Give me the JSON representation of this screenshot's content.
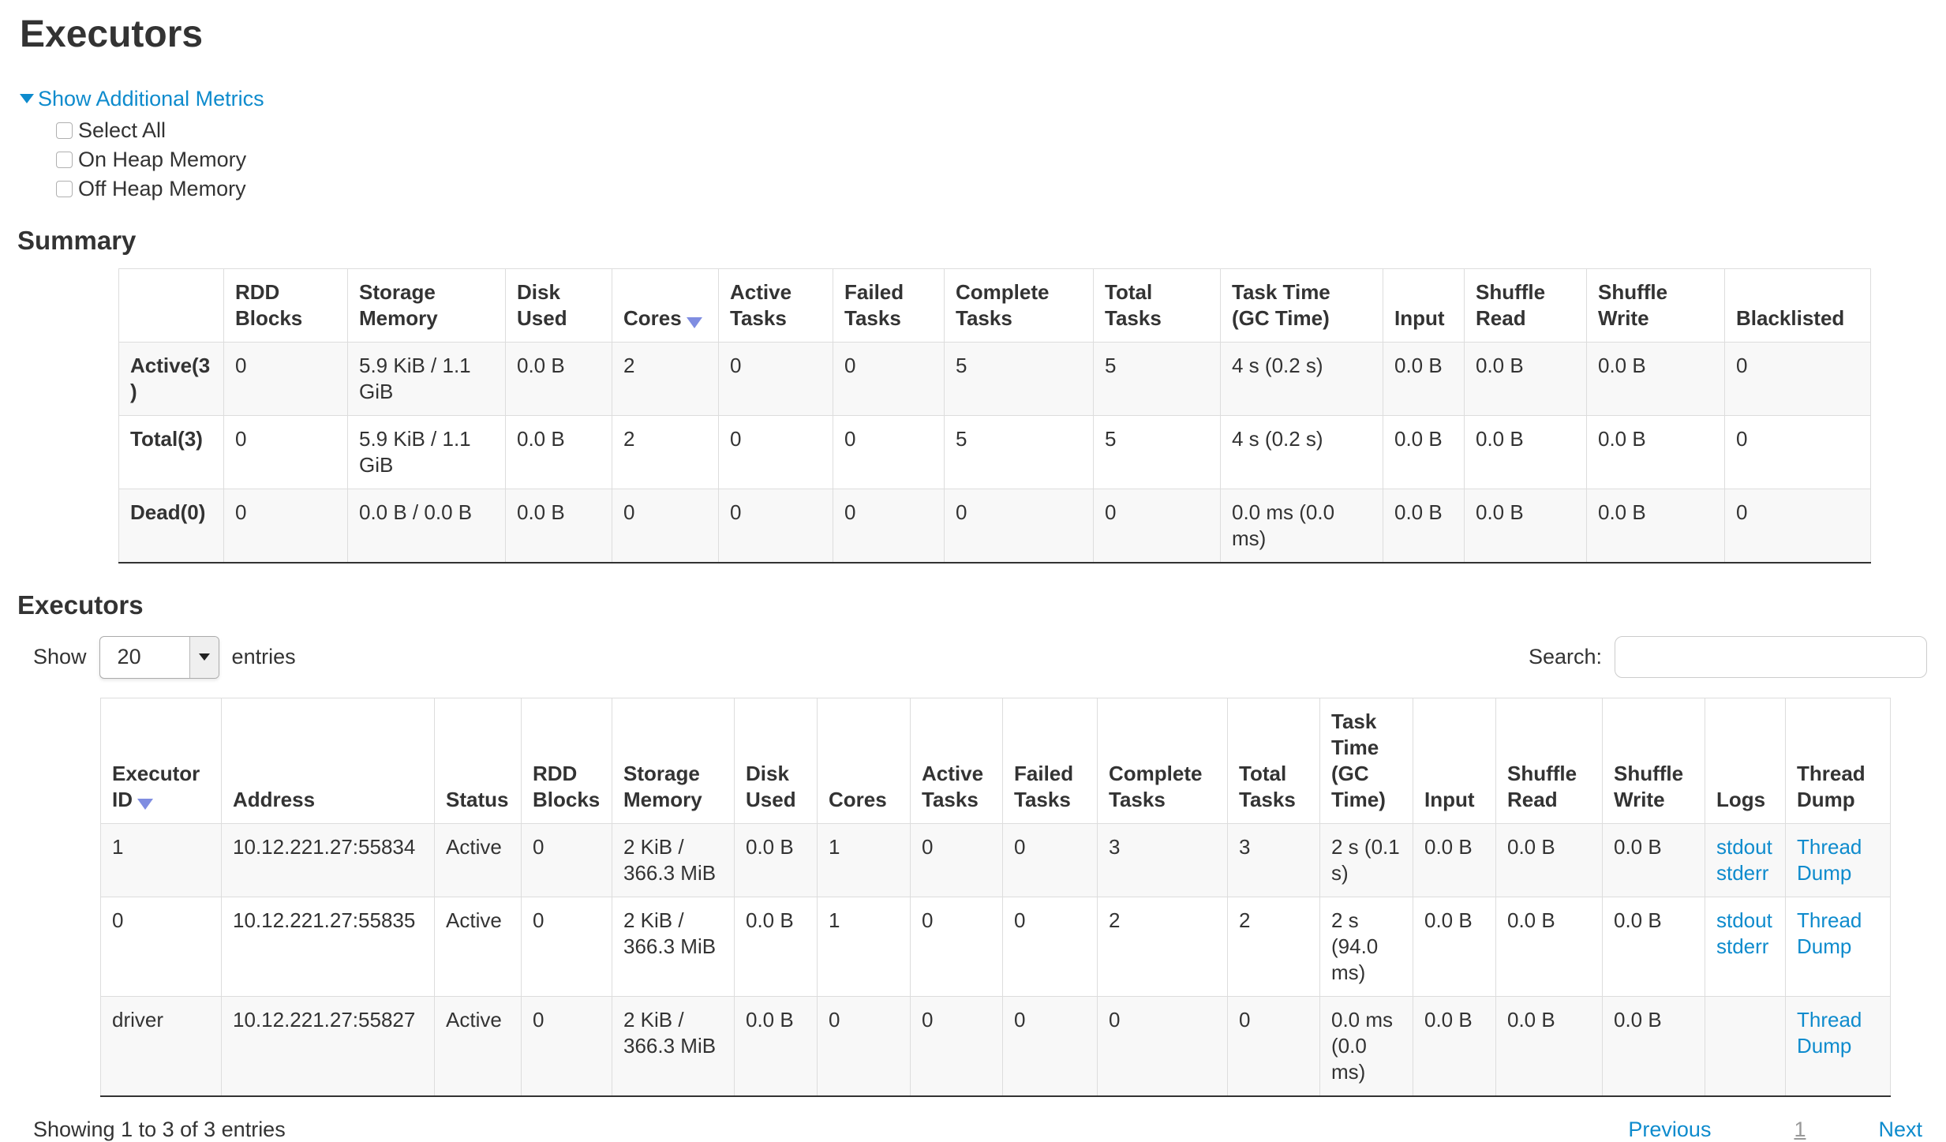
{
  "page_title": "Executors",
  "metrics": {
    "toggle_label": "Show Additional Metrics",
    "options": [
      {
        "label": "Select All",
        "checked": false
      },
      {
        "label": "On Heap Memory",
        "checked": false
      },
      {
        "label": "Off Heap Memory",
        "checked": false
      }
    ]
  },
  "summary": {
    "heading": "Summary",
    "columns": [
      "",
      "RDD Blocks",
      "Storage Memory",
      "Disk Used",
      "Cores",
      "Active Tasks",
      "Failed Tasks",
      "Complete Tasks",
      "Total Tasks",
      "Task Time (GC Time)",
      "Input",
      "Shuffle Read",
      "Shuffle Write",
      "Blacklisted"
    ],
    "sorted_column": "Cores",
    "sort_direction": "desc",
    "rows": [
      {
        "label": "Active(3)",
        "cells": [
          "0",
          "5.9 KiB / 1.1 GiB",
          "0.0 B",
          "2",
          "0",
          "0",
          "5",
          "5",
          "4 s (0.2 s)",
          "0.0 B",
          "0.0 B",
          "0.0 B",
          "0"
        ]
      },
      {
        "label": "Total(3)",
        "cells": [
          "0",
          "5.9 KiB / 1.1 GiB",
          "0.0 B",
          "2",
          "0",
          "0",
          "5",
          "5",
          "4 s (0.2 s)",
          "0.0 B",
          "0.0 B",
          "0.0 B",
          "0"
        ]
      },
      {
        "label": "Dead(0)",
        "cells": [
          "0",
          "0.0 B / 0.0 B",
          "0.0 B",
          "0",
          "0",
          "0",
          "0",
          "0",
          "0.0 ms (0.0 ms)",
          "0.0 B",
          "0.0 B",
          "0.0 B",
          "0"
        ]
      }
    ]
  },
  "executors_table": {
    "heading": "Executors",
    "length_control": {
      "prefix": "Show",
      "value": "20",
      "suffix": "entries"
    },
    "search": {
      "label": "Search:",
      "value": ""
    },
    "columns": [
      "Executor ID",
      "Address",
      "Status",
      "RDD Blocks",
      "Storage Memory",
      "Disk Used",
      "Cores",
      "Active Tasks",
      "Failed Tasks",
      "Complete Tasks",
      "Total Tasks",
      "Task Time (GC Time)",
      "Input",
      "Shuffle Read",
      "Shuffle Write",
      "Logs",
      "Thread Dump"
    ],
    "sorted_column": "Executor ID",
    "sort_direction": "desc",
    "rows": [
      {
        "cells": [
          "1",
          "10.12.221.27:55834",
          "Active",
          "0",
          "2 KiB / 366.3 MiB",
          "0.0 B",
          "1",
          "0",
          "0",
          "3",
          "3",
          "2 s (0.1 s)",
          "0.0 B",
          "0.0 B",
          "0.0 B"
        ],
        "logs": [
          "stdout",
          "stderr"
        ],
        "thread_dump": "Thread Dump"
      },
      {
        "cells": [
          "0",
          "10.12.221.27:55835",
          "Active",
          "0",
          "2 KiB / 366.3 MiB",
          "0.0 B",
          "1",
          "0",
          "0",
          "2",
          "2",
          "2 s (94.0 ms)",
          "0.0 B",
          "0.0 B",
          "0.0 B"
        ],
        "logs": [
          "stdout",
          "stderr"
        ],
        "thread_dump": "Thread Dump"
      },
      {
        "cells": [
          "driver",
          "10.12.221.27:55827",
          "Active",
          "0",
          "2 KiB / 366.3 MiB",
          "0.0 B",
          "0",
          "0",
          "0",
          "0",
          "0",
          "0.0 ms (0.0 ms)",
          "0.0 B",
          "0.0 B",
          "0.0 B"
        ],
        "logs": [],
        "thread_dump": "Thread Dump"
      }
    ],
    "footer": {
      "info": "Showing 1 to 3 of 3 entries",
      "previous": "Previous",
      "page": "1",
      "next": "Next"
    }
  },
  "colors": {
    "link": "#0e8bcd",
    "text": "#333333",
    "table_border": "#dddddd",
    "row_stripe": "#f8f8f8",
    "sort_arrow": "#7f8de1",
    "table_bottom_border": "#333333"
  }
}
